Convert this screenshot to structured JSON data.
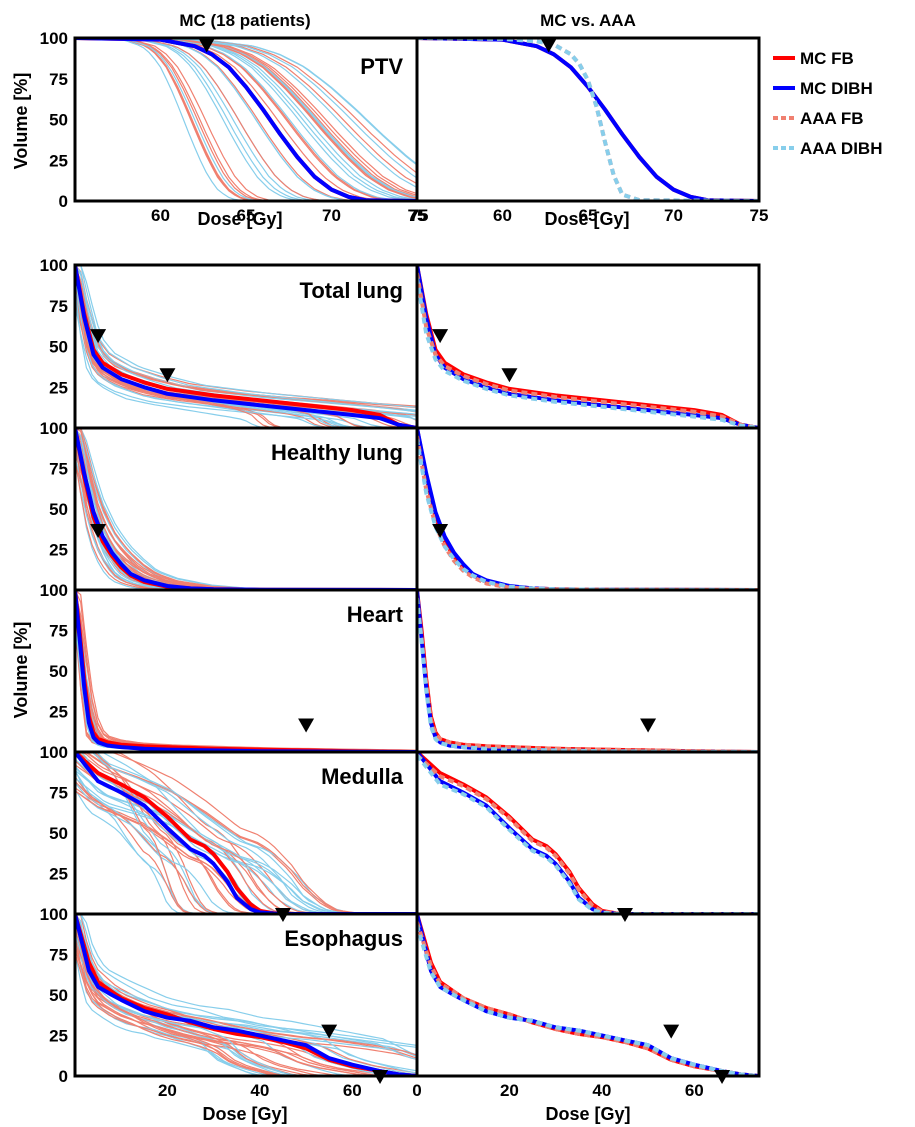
{
  "figure": {
    "left_header": "MC (18 patients)",
    "right_header": "MC vs. AAA",
    "ylabel": "Volume [%]",
    "xlabel": "Dose [Gy]"
  },
  "legend": [
    {
      "label": "MC FB",
      "color": "#ff0000",
      "style": "solid"
    },
    {
      "label": "MC DIBH",
      "color": "#0000ff",
      "style": "solid"
    },
    {
      "label": "AAA FB",
      "color": "#f08070",
      "style": "dashed"
    },
    {
      "label": "AAA DIBH",
      "color": "#87ceeb",
      "style": "dashed"
    }
  ],
  "colors": {
    "fb_thin": "#f08070",
    "dibh_thin": "#87ceeb",
    "mc_fb": "#ff0000",
    "mc_dibh": "#0000ff",
    "marker": "#000000"
  },
  "chart_data": [
    {
      "type": "line",
      "structure": "PTV",
      "x_ticks": [
        60,
        65,
        70,
        75
      ],
      "y_ticks": [
        0,
        25,
        50,
        75,
        100
      ],
      "xlim": [
        55,
        75
      ],
      "ylim": [
        0,
        100
      ],
      "markers_left": [
        {
          "x": 62.7,
          "y": 96
        }
      ],
      "markers_right": [
        {
          "x": 62.7,
          "y": 96
        }
      ],
      "series": [
        {
          "name": "MC FB",
          "x": [
            55,
            60,
            62,
            63,
            64,
            65,
            66,
            67,
            68,
            69,
            70,
            71,
            72,
            75
          ],
          "y": [
            100,
            99,
            95,
            90,
            82,
            70,
            56,
            41,
            27,
            15,
            7,
            2.5,
            0.5,
            0
          ]
        },
        {
          "name": "MC DIBH",
          "x": [
            55,
            60,
            62,
            63,
            64,
            65,
            66,
            67,
            68,
            69,
            70,
            71,
            72,
            75
          ],
          "y": [
            100,
            99,
            95,
            90,
            82,
            70,
            56,
            41,
            27,
            15,
            7,
            2.5,
            0.5,
            0
          ]
        },
        {
          "name": "AAA FB",
          "x": [
            55,
            60,
            62,
            63,
            64,
            64.5,
            65,
            65.5,
            66,
            66.5,
            67,
            68,
            75
          ],
          "y": [
            100,
            99.5,
            98,
            96,
            90,
            84,
            74,
            58,
            36,
            16,
            4,
            0.5,
            0
          ]
        },
        {
          "name": "AAA DIBH",
          "x": [
            55,
            60,
            62,
            63,
            64,
            64.5,
            65,
            65.5,
            66,
            66.5,
            67,
            68,
            75
          ],
          "y": [
            100,
            99.5,
            98,
            96,
            90,
            84,
            74,
            58,
            36,
            16,
            4,
            0.5,
            0
          ]
        }
      ]
    },
    {
      "type": "line",
      "structure": "Total lung",
      "y_ticks": [
        25,
        50,
        75,
        100
      ],
      "xlim": [
        0,
        74
      ],
      "ylim": [
        0,
        100
      ],
      "markers_left": [
        {
          "x": 5,
          "y": 57
        },
        {
          "x": 20,
          "y": 33
        }
      ],
      "markers_right": [
        {
          "x": 5,
          "y": 57
        },
        {
          "x": 20,
          "y": 33
        }
      ],
      "series": [
        {
          "name": "MC FB",
          "x": [
            0,
            2,
            4,
            6,
            10,
            15,
            20,
            30,
            40,
            50,
            60,
            66,
            70,
            74
          ],
          "y": [
            100,
            70,
            48,
            40,
            33,
            28,
            24,
            20,
            17,
            14,
            11,
            8,
            2,
            0
          ]
        },
        {
          "name": "MC DIBH",
          "x": [
            0,
            2,
            4,
            6,
            10,
            15,
            20,
            30,
            40,
            50,
            60,
            66,
            70,
            74
          ],
          "y": [
            100,
            68,
            45,
            37,
            30,
            25,
            21,
            17,
            14,
            11,
            8,
            6,
            2,
            0
          ]
        },
        {
          "name": "AAA FB",
          "x": [
            0,
            2,
            4,
            6,
            10,
            15,
            20,
            30,
            40,
            50,
            60,
            66,
            70,
            74
          ],
          "y": [
            95,
            62,
            45,
            38,
            32,
            27,
            23,
            19,
            16,
            13,
            10,
            7,
            2,
            0
          ]
        },
        {
          "name": "AAA DIBH",
          "x": [
            0,
            2,
            4,
            6,
            10,
            15,
            20,
            30,
            40,
            50,
            60,
            66,
            70,
            74
          ],
          "y": [
            92,
            58,
            42,
            35,
            29,
            24,
            20,
            16,
            13,
            10,
            7,
            5,
            1.5,
            0
          ]
        }
      ]
    },
    {
      "type": "line",
      "structure": "Healthy lung",
      "y_ticks": [
        25,
        50,
        75,
        100
      ],
      "xlim": [
        0,
        74
      ],
      "ylim": [
        0,
        100
      ],
      "markers_left": [
        {
          "x": 5,
          "y": 37
        }
      ],
      "markers_right": [
        {
          "x": 5,
          "y": 37
        }
      ],
      "series": [
        {
          "name": "MC FB",
          "x": [
            0,
            2,
            4,
            6,
            8,
            10,
            12,
            15,
            20,
            25,
            30,
            40,
            74
          ],
          "y": [
            100,
            70,
            45,
            30,
            21,
            14,
            9,
            5,
            2,
            1,
            0.5,
            0.2,
            0
          ]
        },
        {
          "name": "MC DIBH",
          "x": [
            0,
            2,
            4,
            6,
            8,
            10,
            12,
            15,
            20,
            25,
            30,
            40,
            74
          ],
          "y": [
            100,
            72,
            48,
            33,
            23,
            16,
            10,
            6,
            2.5,
            1,
            0.5,
            0.2,
            0
          ]
        },
        {
          "name": "AAA FB",
          "x": [
            0,
            2,
            4,
            6,
            8,
            10,
            12,
            15,
            20,
            25,
            30,
            40,
            74
          ],
          "y": [
            95,
            62,
            40,
            27,
            18,
            12,
            8,
            4,
            1.5,
            0.7,
            0.4,
            0.2,
            0
          ]
        },
        {
          "name": "AAA DIBH",
          "x": [
            0,
            2,
            4,
            6,
            8,
            10,
            12,
            15,
            20,
            25,
            30,
            40,
            74
          ],
          "y": [
            93,
            60,
            39,
            27,
            19,
            13,
            9,
            5,
            2,
            1,
            0.5,
            0.2,
            0
          ]
        }
      ]
    },
    {
      "type": "line",
      "structure": "Heart",
      "y_ticks": [
        25,
        50,
        75,
        100
      ],
      "xlim": [
        0,
        74
      ],
      "ylim": [
        0,
        100
      ],
      "markers_left": [
        {
          "x": 50,
          "y": 17
        }
      ],
      "markers_right": [
        {
          "x": 50,
          "y": 17
        }
      ],
      "series": [
        {
          "name": "MC FB",
          "x": [
            0,
            1,
            2,
            3,
            4,
            5,
            7,
            10,
            15,
            20,
            30,
            40,
            50,
            60,
            74
          ],
          "y": [
            100,
            75,
            45,
            22,
            12,
            8,
            6,
            4.5,
            3.5,
            3,
            2,
            1.5,
            1,
            0.5,
            0
          ]
        },
        {
          "name": "MC DIBH",
          "x": [
            0,
            1,
            2,
            3,
            4,
            5,
            7,
            10,
            15,
            20,
            30,
            40,
            50,
            60,
            74
          ],
          "y": [
            100,
            70,
            40,
            18,
            9,
            6,
            4,
            3,
            2,
            1.5,
            1,
            0.5,
            0.3,
            0.1,
            0
          ]
        },
        {
          "name": "AAA FB",
          "x": [
            0,
            1,
            2,
            3,
            4,
            5,
            7,
            10,
            15,
            20,
            30,
            40,
            50,
            60,
            74
          ],
          "y": [
            95,
            70,
            42,
            20,
            11,
            8,
            6,
            4.5,
            3.5,
            3,
            2,
            1.5,
            1,
            0.5,
            0
          ]
        },
        {
          "name": "AAA DIBH",
          "x": [
            0,
            1,
            2,
            3,
            4,
            5,
            7,
            10,
            15,
            20,
            30,
            40,
            50,
            60,
            74
          ],
          "y": [
            95,
            68,
            38,
            16,
            8,
            5.5,
            4,
            3,
            2,
            1.5,
            1,
            0.5,
            0.3,
            0.1,
            0
          ]
        }
      ]
    },
    {
      "type": "line",
      "structure": "Medulla",
      "y_ticks": [
        25,
        50,
        75,
        100
      ],
      "xlim": [
        0,
        74
      ],
      "ylim": [
        0,
        100
      ],
      "markers_left": [
        {
          "x": 45,
          "y": 0
        }
      ],
      "markers_right": [
        {
          "x": 45,
          "y": 0
        }
      ],
      "series": [
        {
          "name": "MC FB",
          "x": [
            0,
            5,
            10,
            15,
            20,
            25,
            28,
            30,
            33,
            35,
            38,
            40,
            43,
            45,
            74
          ],
          "y": [
            100,
            87,
            80,
            72,
            60,
            46,
            42,
            37,
            26,
            16,
            6,
            2,
            0.5,
            0,
            0
          ]
        },
        {
          "name": "MC DIBH",
          "x": [
            0,
            5,
            10,
            15,
            20,
            25,
            28,
            30,
            33,
            35,
            38,
            40,
            43,
            45,
            74
          ],
          "y": [
            100,
            82,
            75,
            67,
            53,
            40,
            36,
            31,
            20,
            10,
            3,
            1,
            0.3,
            0,
            0
          ]
        },
        {
          "name": "AAA FB",
          "x": [
            0,
            5,
            10,
            15,
            20,
            25,
            28,
            30,
            33,
            35,
            38,
            40,
            43,
            45,
            74
          ],
          "y": [
            98,
            85,
            79,
            71,
            59,
            45,
            41,
            36,
            25,
            15,
            5,
            1.5,
            0.4,
            0,
            0
          ]
        },
        {
          "name": "AAA DIBH",
          "x": [
            0,
            5,
            10,
            15,
            20,
            25,
            28,
            30,
            33,
            35,
            38,
            40,
            43,
            45,
            74
          ],
          "y": [
            98,
            80,
            74,
            66,
            52,
            39,
            35,
            30,
            19,
            9,
            2.5,
            0.8,
            0.2,
            0,
            0
          ]
        }
      ]
    },
    {
      "type": "line",
      "structure": "Esophagus",
      "x_ticks": [
        20,
        40,
        60
      ],
      "right_x_ticks": [
        0,
        20,
        40,
        60
      ],
      "y_ticks": [
        0,
        25,
        50,
        75,
        100
      ],
      "xlim": [
        0,
        74
      ],
      "ylim": [
        0,
        100
      ],
      "markers_left": [
        {
          "x": 55,
          "y": 28
        },
        {
          "x": 66,
          "y": 0
        }
      ],
      "markers_right": [
        {
          "x": 55,
          "y": 28
        },
        {
          "x": 66,
          "y": 0
        }
      ],
      "series": [
        {
          "name": "MC FB",
          "x": [
            0,
            3,
            5,
            8,
            10,
            15,
            20,
            25,
            30,
            35,
            40,
            45,
            50,
            55,
            60,
            66,
            70,
            74
          ],
          "y": [
            100,
            70,
            58,
            52,
            48,
            42,
            38,
            33,
            29,
            26,
            24,
            21,
            17,
            10,
            6,
            3,
            1,
            0
          ]
        },
        {
          "name": "MC DIBH",
          "x": [
            0,
            3,
            5,
            8,
            10,
            15,
            20,
            25,
            30,
            35,
            40,
            45,
            50,
            55,
            60,
            66,
            70,
            74
          ],
          "y": [
            100,
            65,
            55,
            50,
            47,
            40,
            36,
            34,
            30,
            28,
            25,
            22,
            19,
            11,
            7,
            3,
            1,
            0
          ]
        },
        {
          "name": "AAA FB",
          "x": [
            0,
            3,
            5,
            8,
            10,
            15,
            20,
            25,
            30,
            35,
            40,
            45,
            50,
            55,
            60,
            66,
            70,
            74
          ],
          "y": [
            95,
            68,
            57,
            52,
            48,
            42,
            38,
            33,
            29,
            26,
            24,
            21,
            17,
            10,
            6,
            3,
            1,
            0
          ]
        },
        {
          "name": "AAA DIBH",
          "x": [
            0,
            3,
            5,
            8,
            10,
            15,
            20,
            25,
            30,
            35,
            40,
            45,
            50,
            55,
            60,
            66,
            70,
            74
          ],
          "y": [
            93,
            64,
            55,
            50,
            47,
            40,
            36,
            34,
            30,
            28,
            25,
            22,
            19,
            11,
            7,
            3,
            1,
            0
          ]
        }
      ]
    }
  ]
}
